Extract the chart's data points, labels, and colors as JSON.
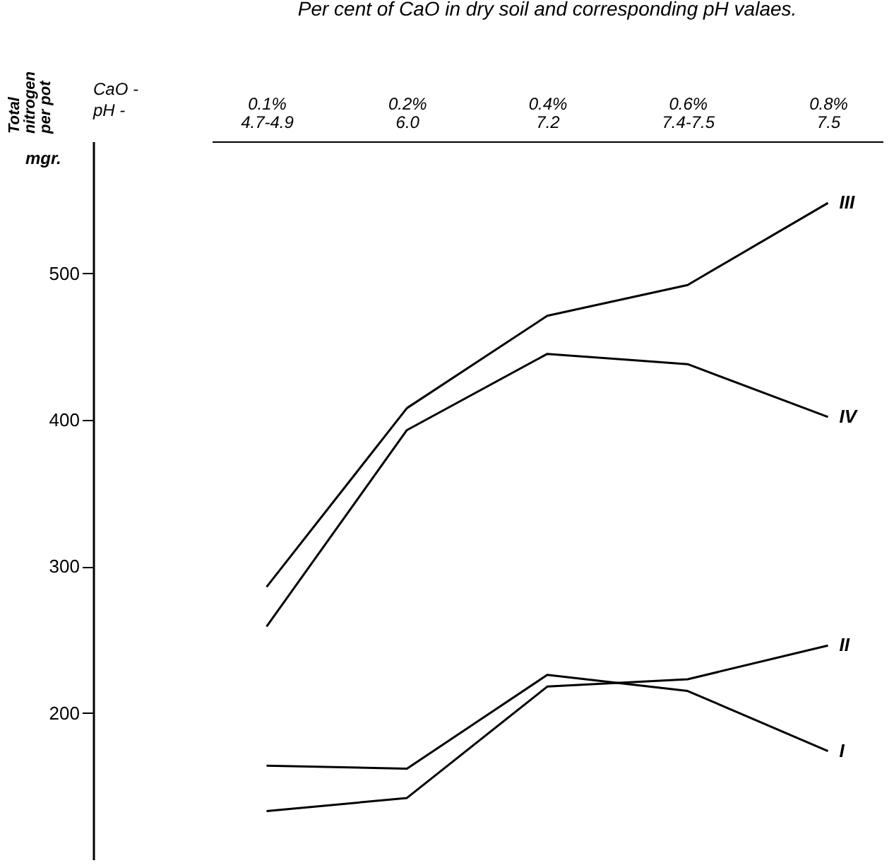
{
  "chart_data": {
    "type": "line",
    "title": "Per cent of CaO in dry soil and corresponding pH valaes.",
    "ylabel": "Total nitrogen per pot",
    "annotations": [
      "mgr.",
      "CaO  -",
      "pH  -"
    ],
    "categories": [
      "0.1%\n4.7-4.9",
      "0.2%\n6.0",
      "0.4%\n7.2",
      "0.6%\n7.4-7.5",
      "0.8%\n7.5"
    ],
    "ylim": [
      100,
      590
    ],
    "yticks": [
      200,
      300,
      400,
      500
    ],
    "grid": false,
    "marker": "none",
    "line_style": "solid",
    "series": [
      {
        "name": "I",
        "color": "#000000",
        "values": [
          164,
          162,
          226,
          215,
          174
        ]
      },
      {
        "name": "II",
        "color": "#000000",
        "values": [
          133,
          142,
          218,
          223,
          246
        ]
      },
      {
        "name": "III",
        "color": "#000000",
        "values": [
          286,
          408,
          471,
          492,
          548
        ]
      },
      {
        "name": "IV",
        "color": "#000000",
        "values": [
          259,
          393,
          445,
          438,
          402
        ]
      }
    ]
  }
}
